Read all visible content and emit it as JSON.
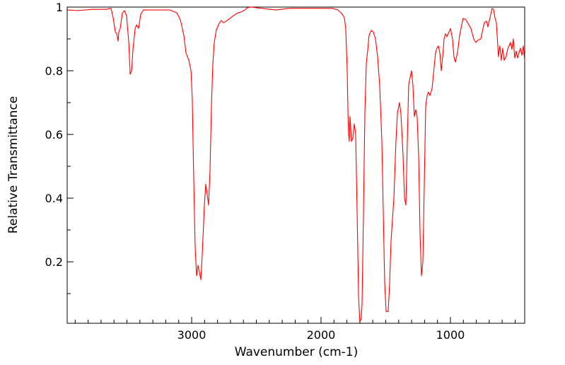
{
  "chart_data": {
    "type": "line",
    "title": "",
    "xlabel": "Wavenumber (cm-1)",
    "ylabel": "Relative Transmittance",
    "xlim": [
      3962,
      426
    ],
    "ylim": [
      0.007,
      1.0
    ],
    "x_reversed": true,
    "grid": false,
    "x_ticks": [
      3000,
      2000,
      1000
    ],
    "x_tick_labels": [
      "3000",
      "2000",
      "1000"
    ],
    "y_ticks": [
      0.2,
      0.4,
      0.6,
      0.8,
      1
    ],
    "y_tick_labels": [
      "0.2",
      "0.4",
      "0.6",
      "0.8",
      "1"
    ],
    "series": [
      {
        "name": "spectrum",
        "color": "#ff0000",
        "points": [
          [
            3962,
            0.991
          ],
          [
            3880,
            0.989
          ],
          [
            3770,
            0.993
          ],
          [
            3661,
            0.993
          ],
          [
            3623,
            0.996
          ],
          [
            3607,
            0.967
          ],
          [
            3590,
            0.922
          ],
          [
            3579,
            0.916
          ],
          [
            3568,
            0.893
          ],
          [
            3563,
            0.922
          ],
          [
            3552,
            0.933
          ],
          [
            3535,
            0.982
          ],
          [
            3519,
            0.989
          ],
          [
            3503,
            0.973
          ],
          [
            3486,
            0.889
          ],
          [
            3475,
            0.789
          ],
          [
            3464,
            0.8
          ],
          [
            3454,
            0.867
          ],
          [
            3437,
            0.933
          ],
          [
            3426,
            0.944
          ],
          [
            3410,
            0.933
          ],
          [
            3393,
            0.978
          ],
          [
            3372,
            0.991
          ],
          [
            3279,
            0.991
          ],
          [
            3169,
            0.991
          ],
          [
            3115,
            0.982
          ],
          [
            3087,
            0.96
          ],
          [
            3060,
            0.911
          ],
          [
            3044,
            0.856
          ],
          [
            3022,
            0.833
          ],
          [
            3005,
            0.8
          ],
          [
            2995,
            0.711
          ],
          [
            2984,
            0.467
          ],
          [
            2973,
            0.244
          ],
          [
            2962,
            0.156
          ],
          [
            2951,
            0.189
          ],
          [
            2940,
            0.167
          ],
          [
            2929,
            0.144
          ],
          [
            2918,
            0.222
          ],
          [
            2902,
            0.378
          ],
          [
            2891,
            0.444
          ],
          [
            2880,
            0.411
          ],
          [
            2869,
            0.378
          ],
          [
            2858,
            0.489
          ],
          [
            2847,
            0.689
          ],
          [
            2836,
            0.822
          ],
          [
            2825,
            0.889
          ],
          [
            2809,
            0.929
          ],
          [
            2787,
            0.949
          ],
          [
            2771,
            0.958
          ],
          [
            2754,
            0.951
          ],
          [
            2732,
            0.956
          ],
          [
            2705,
            0.964
          ],
          [
            2678,
            0.973
          ],
          [
            2650,
            0.98
          ],
          [
            2623,
            0.984
          ],
          [
            2596,
            0.989
          ],
          [
            2568,
            0.998
          ],
          [
            2541,
            1.0
          ],
          [
            2459,
            0.996
          ],
          [
            2350,
            0.991
          ],
          [
            2240,
            0.996
          ],
          [
            2131,
            0.996
          ],
          [
            2022,
            0.996
          ],
          [
            1913,
            0.996
          ],
          [
            1869,
            0.991
          ],
          [
            1836,
            0.978
          ],
          [
            1820,
            0.967
          ],
          [
            1809,
            0.933
          ],
          [
            1798,
            0.8
          ],
          [
            1792,
            0.667
          ],
          [
            1787,
            0.6
          ],
          [
            1782,
            0.578
          ],
          [
            1776,
            0.656
          ],
          [
            1765,
            0.578
          ],
          [
            1754,
            0.589
          ],
          [
            1743,
            0.633
          ],
          [
            1732,
            0.6
          ],
          [
            1721,
            0.356
          ],
          [
            1710,
            0.089
          ],
          [
            1700,
            0.011
          ],
          [
            1689,
            0.022
          ],
          [
            1683,
            0.067
          ],
          [
            1672,
            0.356
          ],
          [
            1661,
            0.667
          ],
          [
            1650,
            0.822
          ],
          [
            1639,
            0.867
          ],
          [
            1629,
            0.911
          ],
          [
            1612,
            0.927
          ],
          [
            1596,
            0.922
          ],
          [
            1579,
            0.9
          ],
          [
            1563,
            0.844
          ],
          [
            1547,
            0.756
          ],
          [
            1530,
            0.578
          ],
          [
            1519,
            0.356
          ],
          [
            1508,
            0.133
          ],
          [
            1497,
            0.044
          ],
          [
            1481,
            0.044
          ],
          [
            1470,
            0.133
          ],
          [
            1459,
            0.267
          ],
          [
            1448,
            0.333
          ],
          [
            1437,
            0.4
          ],
          [
            1421,
            0.578
          ],
          [
            1410,
            0.667
          ],
          [
            1394,
            0.7
          ],
          [
            1383,
            0.667
          ],
          [
            1366,
            0.533
          ],
          [
            1355,
            0.4
          ],
          [
            1344,
            0.378
          ],
          [
            1333,
            0.578
          ],
          [
            1323,
            0.756
          ],
          [
            1312,
            0.778
          ],
          [
            1301,
            0.8
          ],
          [
            1290,
            0.756
          ],
          [
            1279,
            0.656
          ],
          [
            1268,
            0.678
          ],
          [
            1257,
            0.656
          ],
          [
            1246,
            0.533
          ],
          [
            1235,
            0.289
          ],
          [
            1224,
            0.156
          ],
          [
            1213,
            0.2
          ],
          [
            1202,
            0.444
          ],
          [
            1191,
            0.689
          ],
          [
            1180,
            0.722
          ],
          [
            1170,
            0.733
          ],
          [
            1159,
            0.722
          ],
          [
            1142,
            0.744
          ],
          [
            1126,
            0.811
          ],
          [
            1115,
            0.856
          ],
          [
            1104,
            0.871
          ],
          [
            1093,
            0.878
          ],
          [
            1082,
            0.856
          ],
          [
            1071,
            0.8
          ],
          [
            1060,
            0.844
          ],
          [
            1049,
            0.9
          ],
          [
            1038,
            0.916
          ],
          [
            1027,
            0.907
          ],
          [
            1011,
            0.922
          ],
          [
            1000,
            0.933
          ],
          [
            984,
            0.9
          ],
          [
            973,
            0.844
          ],
          [
            962,
            0.827
          ],
          [
            946,
            0.856
          ],
          [
            929,
            0.911
          ],
          [
            913,
            0.944
          ],
          [
            902,
            0.964
          ],
          [
            885,
            0.962
          ],
          [
            864,
            0.949
          ],
          [
            842,
            0.933
          ],
          [
            820,
            0.9
          ],
          [
            803,
            0.889
          ],
          [
            787,
            0.896
          ],
          [
            765,
            0.9
          ],
          [
            754,
            0.922
          ],
          [
            738,
            0.951
          ],
          [
            721,
            0.956
          ],
          [
            711,
            0.938
          ],
          [
            694,
            0.967
          ],
          [
            678,
            0.996
          ],
          [
            667,
            0.993
          ],
          [
            656,
            0.967
          ],
          [
            645,
            0.951
          ],
          [
            629,
            0.844
          ],
          [
            618,
            0.878
          ],
          [
            607,
            0.833
          ],
          [
            596,
            0.871
          ],
          [
            585,
            0.833
          ],
          [
            569,
            0.844
          ],
          [
            558,
            0.867
          ],
          [
            547,
            0.878
          ],
          [
            536,
            0.889
          ],
          [
            525,
            0.867
          ],
          [
            514,
            0.9
          ],
          [
            503,
            0.84
          ],
          [
            492,
            0.862
          ],
          [
            481,
            0.84
          ],
          [
            470,
            0.856
          ],
          [
            459,
            0.871
          ],
          [
            448,
            0.849
          ],
          [
            437,
            0.878
          ],
          [
            426,
            0.833
          ]
        ]
      }
    ]
  }
}
